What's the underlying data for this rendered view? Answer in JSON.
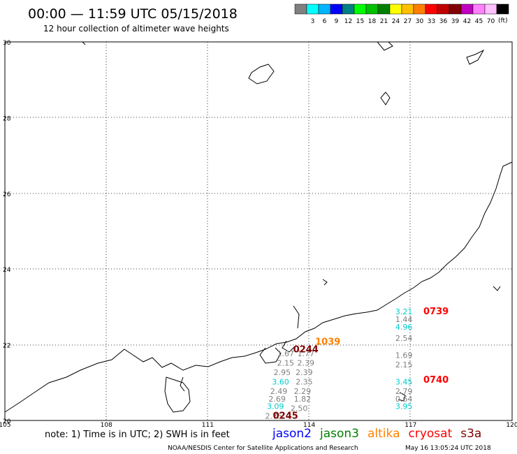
{
  "header": {
    "title": "00:00 — 11:59 UTC 05/15/2018",
    "subtitle": "12 hour collection of altimeter wave heights"
  },
  "color_scale": {
    "unit": "(ft)",
    "swatches": [
      {
        "color": "#808080",
        "label": ""
      },
      {
        "color": "#00ffff",
        "label": "3"
      },
      {
        "color": "#00b4ff",
        "label": "6"
      },
      {
        "color": "#0000ff",
        "label": "9"
      },
      {
        "color": "#008080",
        "label": "12"
      },
      {
        "color": "#00ff00",
        "label": "15"
      },
      {
        "color": "#00c000",
        "label": "18"
      },
      {
        "color": "#008000",
        "label": "21"
      },
      {
        "color": "#ffff00",
        "label": "24"
      },
      {
        "color": "#ffc000",
        "label": "27"
      },
      {
        "color": "#ff8000",
        "label": "30"
      },
      {
        "color": "#ff0000",
        "label": "33"
      },
      {
        "color": "#c00000",
        "label": "36"
      },
      {
        "color": "#800000",
        "label": "39"
      },
      {
        "color": "#c000c0",
        "label": "42"
      },
      {
        "color": "#ff80ff",
        "label": "45"
      },
      {
        "color": "#ffc0ff",
        "label": "70"
      },
      {
        "color": "#000000",
        "label": ""
      }
    ]
  },
  "map": {
    "lon_labels": [
      "105",
      "108",
      "111",
      "114",
      "117",
      "120"
    ],
    "lat_labels": [
      "30",
      "28",
      "26",
      "24",
      "22",
      "20"
    ],
    "lon_range": [
      105,
      120
    ],
    "lat_range": [
      20,
      30
    ],
    "grid": "dotted"
  },
  "swh_readings": [
    {
      "value": "3.21",
      "lon": 116.8,
      "lat": 22.8,
      "color": "#00cccc"
    },
    {
      "value": "1.44",
      "lon": 116.8,
      "lat": 22.6,
      "color": "#808080"
    },
    {
      "value": "4.96",
      "lon": 116.8,
      "lat": 22.4,
      "color": "#00cccc"
    },
    {
      "value": "2.54",
      "lon": 116.8,
      "lat": 22.1,
      "color": "#808080"
    },
    {
      "value": "1.69",
      "lon": 116.8,
      "lat": 21.65,
      "color": "#808080"
    },
    {
      "value": "2.15",
      "lon": 116.8,
      "lat": 21.4,
      "color": "#808080"
    },
    {
      "value": "3.45",
      "lon": 116.8,
      "lat": 20.95,
      "color": "#00cccc"
    },
    {
      "value": "2.79",
      "lon": 116.8,
      "lat": 20.7,
      "color": "#808080"
    },
    {
      "value": "0.64",
      "lon": 116.8,
      "lat": 20.5,
      "color": "#808080"
    },
    {
      "value": "3.95",
      "lon": 116.8,
      "lat": 20.3,
      "color": "#00cccc"
    },
    {
      "value": "1.67",
      "lon": 113.3,
      "lat": 21.7,
      "color": "#808080"
    },
    {
      "value": "1.77",
      "lon": 113.9,
      "lat": 21.7,
      "color": "#808080"
    },
    {
      "value": "2.15",
      "lon": 113.3,
      "lat": 21.45,
      "color": "#808080"
    },
    {
      "value": "2.39",
      "lon": 113.9,
      "lat": 21.45,
      "color": "#808080"
    },
    {
      "value": "2.95",
      "lon": 113.2,
      "lat": 21.2,
      "color": "#808080"
    },
    {
      "value": "2.39",
      "lon": 113.85,
      "lat": 21.2,
      "color": "#808080"
    },
    {
      "value": "3.60",
      "lon": 113.15,
      "lat": 20.95,
      "color": "#00cccc"
    },
    {
      "value": "2.35",
      "lon": 113.85,
      "lat": 20.95,
      "color": "#808080"
    },
    {
      "value": "2.49",
      "lon": 113.1,
      "lat": 20.7,
      "color": "#808080"
    },
    {
      "value": "2.29",
      "lon": 113.8,
      "lat": 20.7,
      "color": "#808080"
    },
    {
      "value": "2.69",
      "lon": 113.05,
      "lat": 20.5,
      "color": "#808080"
    },
    {
      "value": "1.82",
      "lon": 113.8,
      "lat": 20.5,
      "color": "#808080"
    },
    {
      "value": "3.09",
      "lon": 113.0,
      "lat": 20.3,
      "color": "#00cccc"
    },
    {
      "value": "2.50",
      "lon": 113.7,
      "lat": 20.25,
      "color": "#808080"
    },
    {
      "value": "2.75",
      "lon": 112.95,
      "lat": 20.05,
      "color": "#808080"
    }
  ],
  "pass_times": [
    {
      "label": "0739",
      "lon": 117.75,
      "lat": 22.8,
      "color": "#ff0000"
    },
    {
      "label": "0244",
      "lon": 113.9,
      "lat": 21.8,
      "color": "#800000"
    },
    {
      "label": "1039",
      "lon": 114.55,
      "lat": 22.0,
      "color": "#ff8000"
    },
    {
      "label": "0740",
      "lon": 117.75,
      "lat": 21.0,
      "color": "#ff0000"
    },
    {
      "label": "0245",
      "lon": 113.3,
      "lat": 20.05,
      "color": "#800000"
    }
  ],
  "footer": {
    "note": "note: 1) Time is in UTC; 2) SWH is in feet",
    "satellites": [
      {
        "name": "jason2",
        "color": "#0000ff"
      },
      {
        "name": "jason3",
        "color": "#008000"
      },
      {
        "name": "altika",
        "color": "#ff8000"
      },
      {
        "name": "cryosat",
        "color": "#ff0000"
      },
      {
        "name": "s3a",
        "color": "#800000"
      }
    ],
    "credit": "NOAA/NESDIS Center for Satellite Applications and Research",
    "timestamp": "May 16 13:05:24 UTC 2018"
  }
}
